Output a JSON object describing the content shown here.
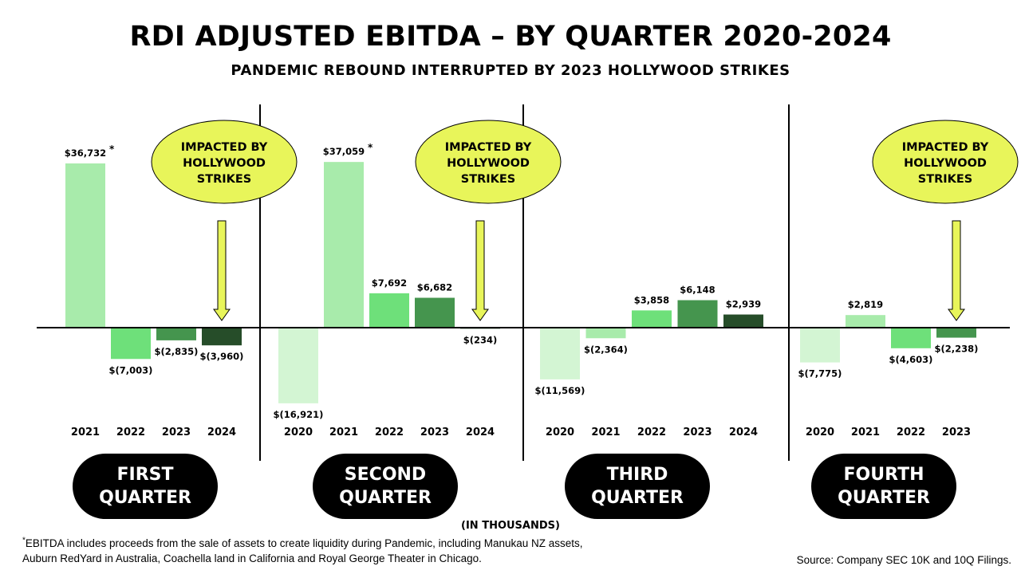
{
  "title": "RDI ADJUSTED EBITDA – BY QUARTER 2020-2024",
  "subtitle": "PANDEMIC REBOUND INTERRUPTED BY 2023 HOLLYWOOD STRIKES",
  "units_label": "(IN THOUSANDS)",
  "footnote": {
    "marker": "*",
    "line1": "EBITDA includes proceeds from the sale of assets to create liquidity during Pandemic, including Manukau NZ assets,",
    "line2": "Auburn RedYard in Australia, Coachella land in California and Royal George Theater in Chicago."
  },
  "source": "Source: Company SEC 10K and 10Q Filings.",
  "quarters": [
    {
      "line1": "FIRST",
      "line2": "QUARTER"
    },
    {
      "line1": "SECOND",
      "line2": "QUARTER"
    },
    {
      "line1": "THIRD",
      "line2": "QUARTER"
    },
    {
      "line1": "FOURTH",
      "line2": "QUARTER"
    }
  ],
  "colors": {
    "2020": "#d3f5d3",
    "2021": "#a8ebab",
    "2022": "#6ee07a",
    "2023": "#45954e",
    "2024": "#264d29",
    "callout": "#e8f55a",
    "arrow": "#e8f55a"
  },
  "chart_data": {
    "type": "bar",
    "title": "RDI ADJUSTED EBITDA – BY QUARTER 2020-2024",
    "subtitle": "PANDEMIC REBOUND INTERRUPTED BY 2023 HOLLYWOOD STRIKES",
    "units": "(IN THOUSANDS)",
    "ylim": [
      -17000,
      38000
    ],
    "groups": [
      {
        "name": "FIRST QUARTER",
        "bars": [
          {
            "year": "2021",
            "value": 36732,
            "label": "$36,732",
            "asterisk": true
          },
          {
            "year": "2022",
            "value": -7003,
            "label": "$(7,003)"
          },
          {
            "year": "2023",
            "value": -2835,
            "label": "$(2,835)"
          },
          {
            "year": "2024",
            "value": -3960,
            "label": "$(3,960)"
          }
        ],
        "callout": {
          "lines": [
            "IMPACTED BY",
            "HOLLYWOOD",
            "STRIKES"
          ],
          "points_to": "2024"
        }
      },
      {
        "name": "SECOND QUARTER",
        "bars": [
          {
            "year": "2020",
            "value": -16921,
            "label": "$(16,921)"
          },
          {
            "year": "2021",
            "value": 37059,
            "label": "$37,059",
            "asterisk": true
          },
          {
            "year": "2022",
            "value": 7692,
            "label": "$7,692"
          },
          {
            "year": "2023",
            "value": 6682,
            "label": "$6,682"
          },
          {
            "year": "2024",
            "value": -234,
            "label": "$(234)"
          }
        ],
        "callout": {
          "lines": [
            "IMPACTED BY",
            "HOLLYWOOD",
            "STRIKES"
          ],
          "points_to": "2024"
        }
      },
      {
        "name": "THIRD QUARTER",
        "bars": [
          {
            "year": "2020",
            "value": -11569,
            "label": "$(11,569)"
          },
          {
            "year": "2021",
            "value": -2364,
            "label": "$(2,364)"
          },
          {
            "year": "2022",
            "value": 3858,
            "label": "$3,858"
          },
          {
            "year": "2023",
            "value": 6148,
            "label": "$6,148"
          },
          {
            "year": "2024",
            "value": 2939,
            "label": "$2,939"
          }
        ]
      },
      {
        "name": "FOURTH QUARTER",
        "bars": [
          {
            "year": "2020",
            "value": -7775,
            "label": "$(7,775)"
          },
          {
            "year": "2021",
            "value": 2819,
            "label": "$2,819"
          },
          {
            "year": "2022",
            "value": -4603,
            "label": "$(4,603)"
          },
          {
            "year": "2023",
            "value": -2238,
            "label": "$(2,238)"
          }
        ],
        "callout": {
          "lines": [
            "IMPACTED BY",
            "HOLLYWOOD",
            "STRIKES"
          ],
          "points_to": "2023"
        }
      }
    ]
  }
}
